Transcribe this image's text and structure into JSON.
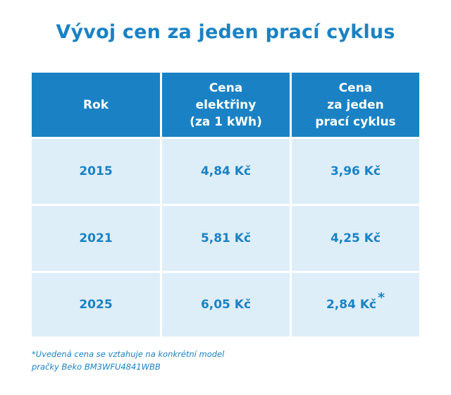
{
  "title": "Vývoj cen za jeden prací cyklus",
  "table": {
    "headers": [
      "Rok",
      "Cena\nelektřiny\n(za 1 kWh)",
      "Cena\nza jeden\nprací cyklus"
    ],
    "rows": [
      {
        "year": "2015",
        "electricity_price": "4,84 Kč",
        "cycle_price": "3,96 Kč",
        "cycle_mark": ""
      },
      {
        "year": "2021",
        "electricity_price": "5,81 Kč",
        "cycle_price": "4,25 Kč",
        "cycle_mark": ""
      },
      {
        "year": "2025",
        "electricity_price": "6,05 Kč",
        "cycle_price": "2,84 Kč",
        "cycle_mark": "*"
      }
    ]
  },
  "footnote": {
    "line1": "*Uvedená cena se vztahuje na konkrétní model",
    "line2": "pračky Beko BM3WFU4841WBB"
  },
  "colors": {
    "accent": "#1a82c4",
    "row_background": "#deeef8",
    "header_text": "#ffffff"
  }
}
